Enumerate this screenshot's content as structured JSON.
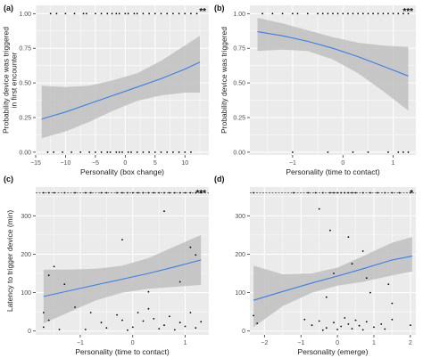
{
  "figure": {
    "background": "#ffffff",
    "panel_bg": "#ebebeb",
    "grid_color": "#ffffff",
    "line_color": "#3d7fe0",
    "ribbon_color": "#bfbfbf",
    "point_color": "#000000"
  },
  "chart_data": [
    {
      "type": "scatter",
      "panel_label": "(a)",
      "xlabel": "Personality (box change)",
      "ylabel": "Probability device was triggered in first encounter",
      "ylabel_lines": [
        "Probability device was triggered",
        "in first encounter"
      ],
      "significance": "**",
      "xlim": [
        -15,
        14
      ],
      "ylim": [
        -0.02,
        1.06
      ],
      "xticks": [
        -15,
        -10,
        -5,
        0,
        5,
        10
      ],
      "xtick_labels": [
        "−15",
        "−10",
        "−5",
        "0",
        "5",
        "10"
      ],
      "yticks": [
        0,
        0.25,
        0.5,
        0.75,
        1
      ],
      "ytick_labels": [
        "0.00",
        "0.25",
        "0.50",
        "0.75",
        "1.00"
      ],
      "grid": true,
      "fit": {
        "x": [
          -14,
          -10,
          -6,
          -2,
          2,
          6,
          10,
          12.5
        ],
        "y": [
          0.24,
          0.29,
          0.35,
          0.41,
          0.47,
          0.53,
          0.6,
          0.65
        ]
      },
      "ribbon": {
        "x": [
          -14,
          -10,
          -6,
          -2,
          2,
          6,
          10,
          12.5
        ],
        "lower": [
          0.1,
          0.15,
          0.22,
          0.3,
          0.37,
          0.41,
          0.43,
          0.43
        ],
        "upper": [
          0.48,
          0.47,
          0.48,
          0.52,
          0.57,
          0.66,
          0.77,
          0.84
        ]
      },
      "points": [
        [
          -12.5,
          1
        ],
        [
          -11.5,
          1
        ],
        [
          -10,
          1
        ],
        [
          -8.5,
          1
        ],
        [
          -7,
          1
        ],
        [
          -6.5,
          1
        ],
        [
          -5,
          1
        ],
        [
          -4,
          1
        ],
        [
          -3,
          1
        ],
        [
          -2.2,
          1
        ],
        [
          -1.5,
          1
        ],
        [
          -1,
          1
        ],
        [
          0,
          1
        ],
        [
          0.5,
          1
        ],
        [
          1.5,
          1
        ],
        [
          2,
          1
        ],
        [
          3,
          1
        ],
        [
          4,
          1
        ],
        [
          5,
          1
        ],
        [
          6,
          1
        ],
        [
          7,
          1
        ],
        [
          8,
          1
        ],
        [
          9,
          1
        ],
        [
          10,
          1
        ],
        [
          11,
          1
        ],
        [
          12,
          1
        ],
        [
          -13,
          0
        ],
        [
          -12,
          0
        ],
        [
          -10.5,
          0
        ],
        [
          -9,
          0
        ],
        [
          -7.5,
          0
        ],
        [
          -6,
          0
        ],
        [
          -5,
          0
        ],
        [
          -4,
          0
        ],
        [
          -3,
          0
        ],
        [
          -2.5,
          0
        ],
        [
          -1.5,
          0
        ],
        [
          -1,
          0
        ],
        [
          -0.5,
          0
        ],
        [
          0.5,
          0
        ],
        [
          1,
          0
        ],
        [
          2,
          0
        ],
        [
          3,
          0
        ],
        [
          4,
          0
        ],
        [
          5,
          0
        ],
        [
          6,
          0
        ],
        [
          7,
          0
        ],
        [
          8,
          0
        ],
        [
          9,
          0
        ],
        [
          10,
          0
        ],
        [
          11,
          0
        ]
      ]
    },
    {
      "type": "scatter",
      "panel_label": "(b)",
      "xlabel": "Personality (time to contact)",
      "ylabel": "Probability device was triggered",
      "ylabel_lines": [
        "Probability device was triggered"
      ],
      "significance": "***",
      "xlim": [
        -1.85,
        1.45
      ],
      "ylim": [
        -0.02,
        1.06
      ],
      "xticks": [
        -1,
        0,
        1
      ],
      "xtick_labels": [
        "−1",
        "0",
        "1"
      ],
      "yticks": [
        0,
        0.25,
        0.5,
        0.75,
        1
      ],
      "ytick_labels": [
        "0.00",
        "0.25",
        "0.50",
        "0.75",
        "1.00"
      ],
      "grid": true,
      "fit": {
        "x": [
          -1.7,
          -1.2,
          -0.7,
          -0.2,
          0.3,
          0.8,
          1.3
        ],
        "y": [
          0.87,
          0.84,
          0.8,
          0.75,
          0.69,
          0.62,
          0.55
        ]
      },
      "ribbon": {
        "x": [
          -1.7,
          -1.2,
          -0.7,
          -0.2,
          0.3,
          0.8,
          1.3
        ],
        "lower": [
          0.73,
          0.74,
          0.73,
          0.67,
          0.57,
          0.44,
          0.3
        ],
        "upper": [
          0.97,
          0.93,
          0.88,
          0.83,
          0.79,
          0.77,
          0.76
        ]
      },
      "points": [
        [
          -1.6,
          1
        ],
        [
          -1.4,
          1
        ],
        [
          -1.2,
          1
        ],
        [
          -1.0,
          1
        ],
        [
          -0.9,
          1
        ],
        [
          -0.7,
          1
        ],
        [
          -0.5,
          1
        ],
        [
          -0.4,
          1
        ],
        [
          -0.3,
          1
        ],
        [
          -0.2,
          1
        ],
        [
          -0.1,
          1
        ],
        [
          0,
          1
        ],
        [
          0.1,
          1
        ],
        [
          0.2,
          1
        ],
        [
          0.3,
          1
        ],
        [
          0.4,
          1
        ],
        [
          0.5,
          1
        ],
        [
          0.6,
          1
        ],
        [
          0.7,
          1
        ],
        [
          0.8,
          1
        ],
        [
          0.9,
          1
        ],
        [
          1.0,
          1
        ],
        [
          1.1,
          1
        ],
        [
          1.2,
          1
        ],
        [
          1.3,
          1
        ],
        [
          -1.0,
          0
        ],
        [
          -0.3,
          0
        ],
        [
          0.2,
          0
        ],
        [
          0.5,
          0
        ],
        [
          0.9,
          0
        ],
        [
          1.1,
          0
        ],
        [
          1.2,
          0
        ],
        [
          1.3,
          0
        ]
      ]
    },
    {
      "type": "scatter",
      "panel_label": "(c)",
      "xlabel": "Personality (time to contact)",
      "ylabel": "Latency to trigger device (min)",
      "ylabel_lines": [
        "Latency to trigger device (min)"
      ],
      "significance": "***",
      "xlim": [
        -1.85,
        1.45
      ],
      "ylim": [
        -10,
        375
      ],
      "xticks": [
        -1,
        0,
        1
      ],
      "xtick_labels": [
        "−1",
        "0",
        "1"
      ],
      "yticks": [
        0,
        100,
        200,
        300
      ],
      "ytick_labels": [
        "0",
        "100",
        "200",
        "300"
      ],
      "grid": true,
      "cap_line": 360,
      "fit": {
        "x": [
          -1.7,
          -1.2,
          -0.7,
          -0.2,
          0.3,
          0.8,
          1.3
        ],
        "y": [
          90,
          105,
          120,
          135,
          150,
          167,
          185
        ]
      },
      "ribbon": {
        "x": [
          -1.7,
          -1.2,
          -0.7,
          -0.2,
          0.3,
          0.8,
          1.3
        ],
        "lower": [
          20,
          50,
          80,
          100,
          110,
          115,
          120
        ],
        "upper": [
          160,
          160,
          162,
          170,
          190,
          220,
          250
        ]
      },
      "points": [
        [
          -1.7,
          360
        ],
        [
          -1.6,
          360
        ],
        [
          -1.5,
          360
        ],
        [
          -1.3,
          360
        ],
        [
          -1.1,
          360
        ],
        [
          -0.9,
          360
        ],
        [
          -0.8,
          360
        ],
        [
          -0.6,
          360
        ],
        [
          -0.5,
          360
        ],
        [
          -0.3,
          360
        ],
        [
          -0.2,
          360
        ],
        [
          -0.1,
          360
        ],
        [
          0,
          360
        ],
        [
          0.1,
          360
        ],
        [
          0.2,
          360
        ],
        [
          0.3,
          360
        ],
        [
          0.4,
          360
        ],
        [
          0.5,
          360
        ],
        [
          0.6,
          360
        ],
        [
          0.7,
          360
        ],
        [
          0.8,
          360
        ],
        [
          0.9,
          360
        ],
        [
          1.0,
          360
        ],
        [
          1.1,
          360
        ],
        [
          1.2,
          360
        ],
        [
          1.3,
          360
        ],
        [
          0.6,
          312
        ],
        [
          -0.2,
          238
        ],
        [
          1.1,
          218
        ],
        [
          1.2,
          198
        ],
        [
          -1.5,
          168
        ],
        [
          -1.6,
          145
        ],
        [
          -1.3,
          122
        ],
        [
          0.9,
          128
        ],
        [
          0.3,
          102
        ],
        [
          -1.7,
          48
        ],
        [
          -1.6,
          28
        ],
        [
          -1.7,
          10
        ],
        [
          -1.4,
          4
        ],
        [
          -1.1,
          62
        ],
        [
          -0.8,
          48
        ],
        [
          -0.6,
          22
        ],
        [
          -0.5,
          8
        ],
        [
          -0.3,
          42
        ],
        [
          -0.2,
          28
        ],
        [
          0,
          10
        ],
        [
          0.1,
          48
        ],
        [
          0.2,
          26
        ],
        [
          0.3,
          58
        ],
        [
          0.4,
          32
        ],
        [
          0.5,
          6
        ],
        [
          0.6,
          15
        ],
        [
          0.7,
          38
        ],
        [
          0.9,
          22
        ],
        [
          1.0,
          12
        ],
        [
          1.1,
          48
        ],
        [
          1.2,
          8
        ],
        [
          1.3,
          24
        ],
        [
          -0.9,
          4
        ],
        [
          -0.1,
          2
        ],
        [
          0.8,
          3
        ]
      ]
    },
    {
      "type": "scatter",
      "panel_label": "(d)",
      "xlabel": "Personality (emerge)",
      "ylabel": "",
      "ylabel_lines": [],
      "significance": "*",
      "xlim": [
        -2.4,
        2.15
      ],
      "ylim": [
        -10,
        375
      ],
      "xticks": [
        -2,
        -1,
        0,
        1,
        2
      ],
      "xtick_labels": [
        "−2",
        "−1",
        "0",
        "1",
        "2"
      ],
      "yticks": [
        0,
        100,
        200,
        300
      ],
      "ytick_labels": [
        "0",
        "100",
        "200",
        "300"
      ],
      "grid": true,
      "cap_line": 360,
      "fit": {
        "x": [
          -2.3,
          -1.5,
          -0.7,
          0,
          0.7,
          1.5,
          2.05
        ],
        "y": [
          80,
          103,
          125,
          143,
          162,
          185,
          195
        ]
      },
      "ribbon": {
        "x": [
          -2.3,
          -1.5,
          -0.7,
          0,
          0.7,
          1.5,
          2.05
        ],
        "lower": [
          10,
          65,
          100,
          118,
          128,
          145,
          155
        ],
        "upper": [
          170,
          148,
          150,
          165,
          195,
          230,
          245
        ]
      },
      "points": [
        [
          -2.3,
          360
        ],
        [
          -1.2,
          360
        ],
        [
          -0.8,
          360
        ],
        [
          -0.6,
          360
        ],
        [
          -0.4,
          360
        ],
        [
          -0.2,
          360
        ],
        [
          -0.1,
          360
        ],
        [
          0,
          360
        ],
        [
          0.1,
          360
        ],
        [
          0.2,
          360
        ],
        [
          0.3,
          360
        ],
        [
          0.4,
          360
        ],
        [
          0.5,
          360
        ],
        [
          0.7,
          360
        ],
        [
          0.9,
          360
        ],
        [
          1.1,
          360
        ],
        [
          1.3,
          360
        ],
        [
          1.5,
          360
        ],
        [
          1.7,
          360
        ],
        [
          2.0,
          360
        ],
        [
          -0.5,
          318
        ],
        [
          -0.2,
          262
        ],
        [
          0.3,
          245
        ],
        [
          0.7,
          208
        ],
        [
          0.4,
          175
        ],
        [
          -0.1,
          150
        ],
        [
          0.8,
          138
        ],
        [
          1.4,
          122
        ],
        [
          -0.3,
          88
        ],
        [
          0.9,
          100
        ],
        [
          1.5,
          72
        ],
        [
          -2.3,
          40
        ],
        [
          -2.2,
          20
        ],
        [
          -0.9,
          30
        ],
        [
          -0.7,
          15
        ],
        [
          -0.5,
          26
        ],
        [
          -0.3,
          8
        ],
        [
          -0.1,
          22
        ],
        [
          0.1,
          12
        ],
        [
          0.2,
          34
        ],
        [
          0.3,
          18
        ],
        [
          0.4,
          6
        ],
        [
          0.5,
          28
        ],
        [
          0.6,
          14
        ],
        [
          0.8,
          24
        ],
        [
          1.0,
          10
        ],
        [
          1.2,
          18
        ],
        [
          1.3,
          5
        ],
        [
          1.5,
          30
        ],
        [
          2.0,
          15
        ],
        [
          -0.4,
          2
        ],
        [
          0.0,
          4
        ],
        [
          0.7,
          3
        ]
      ]
    }
  ]
}
